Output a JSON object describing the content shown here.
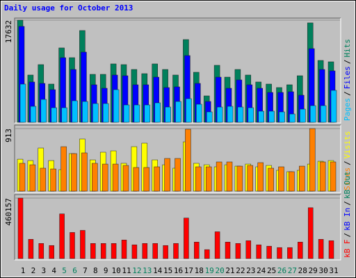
{
  "title": "Daily usage for October 2013",
  "legend_separator": "/",
  "chart_data": [
    {
      "type": "bar",
      "ylim": [
        0,
        17632
      ],
      "yticks": [
        17632
      ],
      "series": [
        {
          "name": "Hits",
          "color": "#00805c",
          "values": [
            17632,
            8160,
            9960,
            6600,
            12840,
            11160,
            15840,
            8280,
            8280,
            10080,
            9960,
            9120,
            8400,
            10080,
            9120,
            8160,
            14280,
            8640,
            4560,
            9840,
            7800,
            9120,
            8160,
            6960,
            6600,
            6000,
            6480,
            8040,
            17160,
            10680,
            10440
          ]
        },
        {
          "name": "Files",
          "color": "#0000ff",
          "values": [
            16560,
            6960,
            6720,
            5640,
            11160,
            9120,
            12120,
            6480,
            5880,
            8160,
            8040,
            6480,
            6480,
            7800,
            6000,
            6120,
            11520,
            6720,
            3600,
            7800,
            5880,
            7320,
            6480,
            5880,
            5160,
            5160,
            5280,
            4680,
            12720,
            9120,
            8880
          ]
        },
        {
          "name": "Pages",
          "color": "#00c0ff",
          "values": [
            6600,
            2760,
            3960,
            2520,
            2520,
            3720,
            3600,
            3240,
            3240,
            5640,
            3000,
            3000,
            3000,
            3360,
            2640,
            3600,
            4080,
            3120,
            1800,
            2640,
            2760,
            2640,
            2520,
            1920,
            1920,
            1800,
            1440,
            2280,
            2880,
            2880,
            5520
          ]
        }
      ]
    },
    {
      "type": "bar",
      "ylim": [
        0,
        913
      ],
      "yticks": [
        913
      ],
      "series": [
        {
          "name": "Visits",
          "color": "#ffff00",
          "values": [
            466,
            446,
            629,
            446,
            314,
            548,
            761,
            456,
            568,
            588,
            406,
            649,
            700,
            456,
            385,
            335,
            720,
            406,
            385,
            355,
            385,
            365,
            395,
            355,
            375,
            304,
            284,
            304,
            395,
            436,
            446
          ]
        },
        {
          "name": "Sites",
          "color": "#ff8000",
          "values": [
            406,
            385,
            335,
            324,
            649,
            548,
            558,
            406,
            395,
            395,
            375,
            345,
            345,
            355,
            477,
            477,
            903,
            355,
            355,
            426,
            426,
            365,
            375,
            416,
            335,
            355,
            284,
            365,
            913,
            426,
            426
          ]
        }
      ]
    },
    {
      "type": "bar",
      "ylim": [
        0,
        460157
      ],
      "yticks": [
        460157
      ],
      "series": [
        {
          "name": "kB F",
          "color": "#ff0000",
          "values": [
            460157,
            146412,
            115038,
            99351,
            339885,
            198702,
            214389,
            115038,
            115038,
            115038,
            141183,
            104580,
            115038,
            115038,
            99351,
            115038,
            308511,
            125496,
            67977,
            203931,
            125496,
            115038,
            135954,
            104580,
            94122,
            83664,
            83664,
            125496,
            386946,
            146412,
            135954
          ]
        }
      ],
      "legend_extra": [
        {
          "name": "kB In",
          "color": "#0000ff"
        },
        {
          "name": "kB Out",
          "color": "#00805c"
        }
      ],
      "categories": [
        "1",
        "2",
        "3",
        "4",
        "5",
        "6",
        "7",
        "8",
        "9",
        "10",
        "11",
        "12",
        "13",
        "14",
        "15",
        "16",
        "17",
        "18",
        "19",
        "20",
        "21",
        "22",
        "23",
        "24",
        "25",
        "26",
        "27",
        "28",
        "29",
        "30",
        "31"
      ],
      "category_colors": [
        "#000000",
        "#000000",
        "#000000",
        "#000000",
        "#00805c",
        "#00805c",
        "#000000",
        "#000000",
        "#000000",
        "#000000",
        "#000000",
        "#00805c",
        "#00805c",
        "#000000",
        "#000000",
        "#000000",
        "#000000",
        "#000000",
        "#00805c",
        "#00805c",
        "#000000",
        "#000000",
        "#000000",
        "#000000",
        "#000000",
        "#00805c",
        "#00805c",
        "#000000",
        "#000000",
        "#000000",
        "#000000"
      ]
    }
  ]
}
